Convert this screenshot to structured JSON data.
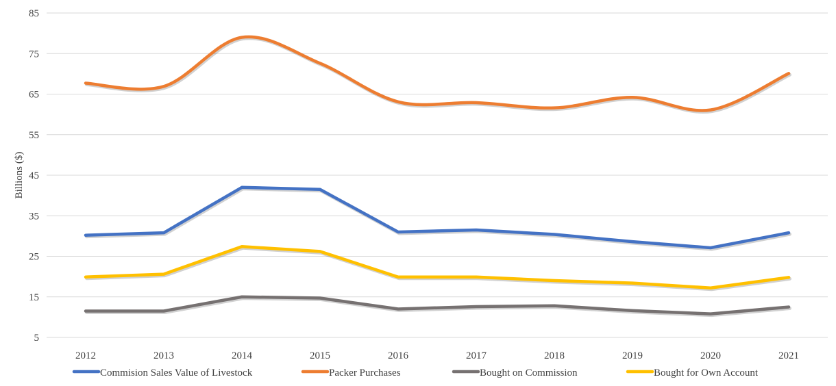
{
  "chart_data": {
    "type": "line",
    "title": "",
    "xlabel": "",
    "ylabel": "Billions ($)",
    "x": [
      "2012",
      "2013",
      "2014",
      "2015",
      "2016",
      "2017",
      "2018",
      "2019",
      "2020",
      "2021"
    ],
    "ylim": [
      5,
      85
    ],
    "yticks": [
      5,
      15,
      25,
      35,
      45,
      55,
      65,
      75,
      85
    ],
    "grid": true,
    "legend_position": "bottom",
    "smooth": true,
    "series": [
      {
        "name": "Commision Sales Value of Livestock",
        "color": "#4472c4",
        "values": [
          30.2,
          30.8,
          42.0,
          41.5,
          31.0,
          31.5,
          30.4,
          28.6,
          27.1,
          30.8
        ]
      },
      {
        "name": "Packer Purchases",
        "color": "#ed7d31",
        "values": [
          67.7,
          66.9,
          79.0,
          72.6,
          63.1,
          62.9,
          61.6,
          64.2,
          61.1,
          70.1
        ]
      },
      {
        "name": "Bought on Commission",
        "color": "#767171",
        "values": [
          11.5,
          11.5,
          15.0,
          14.7,
          12.0,
          12.6,
          12.8,
          11.6,
          10.8,
          12.5
        ]
      },
      {
        "name": "Bought for Own Account",
        "color": "#ffc000",
        "values": [
          19.9,
          20.6,
          27.4,
          26.2,
          19.9,
          19.9,
          19.0,
          18.4,
          17.2,
          19.8
        ]
      }
    ]
  }
}
